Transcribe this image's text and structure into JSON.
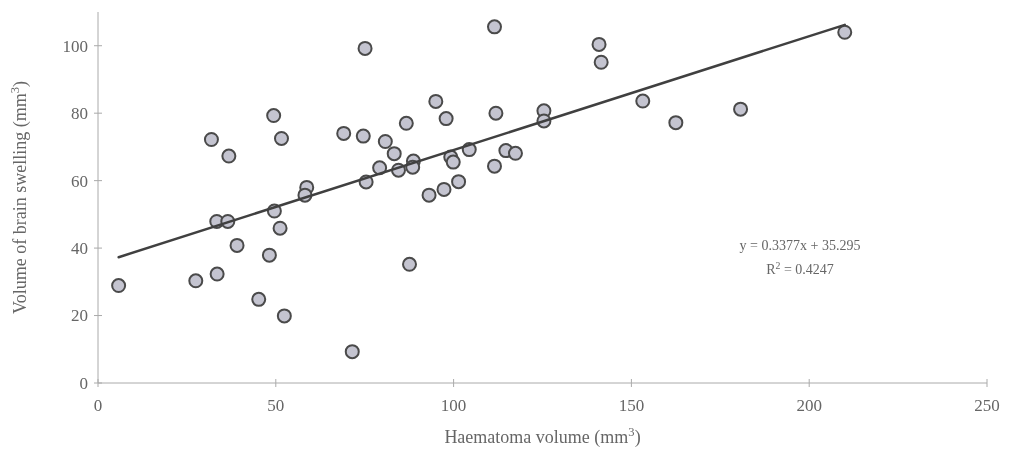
{
  "chart_data": {
    "type": "scatter",
    "xlabel": "Haematoma volume (mm$^{3}$)",
    "ylabel": "Volume of brain swelling (mm$^{3}$)",
    "xlim": [
      0,
      250
    ],
    "xticks": [
      0,
      50,
      100,
      150,
      200,
      250
    ],
    "ylim": [
      0,
      110
    ],
    "yticks": [
      0,
      20,
      40,
      60,
      80,
      100
    ],
    "grid": false,
    "annotations": [
      "y = 0.3377x + 35.295",
      "R$^{2}$ = 0.4247"
    ],
    "series": [
      {
        "color": "#c4c4d0",
        "marker": "circle",
        "x": [
          5.8,
          27.5,
          33.5,
          31.9,
          36.8,
          33.4,
          36.5,
          39.1,
          45.2,
          48.2,
          49.4,
          51.6,
          49.6,
          51.2,
          52.4,
          58.7,
          58.2,
          75.1,
          69.1,
          74.6,
          75.4,
          71.5,
          80.8,
          83.3,
          79.2,
          84.5,
          88.7,
          88.5,
          86.7,
          87.6,
          95.0,
          97.9,
          93.1,
          97.3,
          101.4,
          99.2,
          99.9,
          104.4,
          111.5,
          111.9,
          111.5,
          114.7,
          117.4,
          125.4,
          125.4,
          140.9,
          141.5,
          153.2,
          162.5,
          180.7,
          210.0
        ],
        "values": [
          28.9,
          30.3,
          32.3,
          72.2,
          67.3,
          47.9,
          47.9,
          40.8,
          24.8,
          37.9,
          79.3,
          72.5,
          51.0,
          45.9,
          19.9,
          58.0,
          55.7,
          99.2,
          74.0,
          73.2,
          59.6,
          9.3,
          71.6,
          68.0,
          63.8,
          63.1,
          65.8,
          64.0,
          77.0,
          35.2,
          83.5,
          78.4,
          55.7,
          57.4,
          59.7,
          67.0,
          65.5,
          69.2,
          105.6,
          80.0,
          64.3,
          68.9,
          68.1,
          80.7,
          77.7,
          100.4,
          95.1,
          83.6,
          77.2,
          81.2,
          104.0
        ]
      },
      {
        "type": "line",
        "color": "#404040",
        "line_style": "solid",
        "marker": "none",
        "x": [
          5.8,
          210
        ],
        "values": [
          37.3,
          106.2
        ]
      }
    ]
  }
}
